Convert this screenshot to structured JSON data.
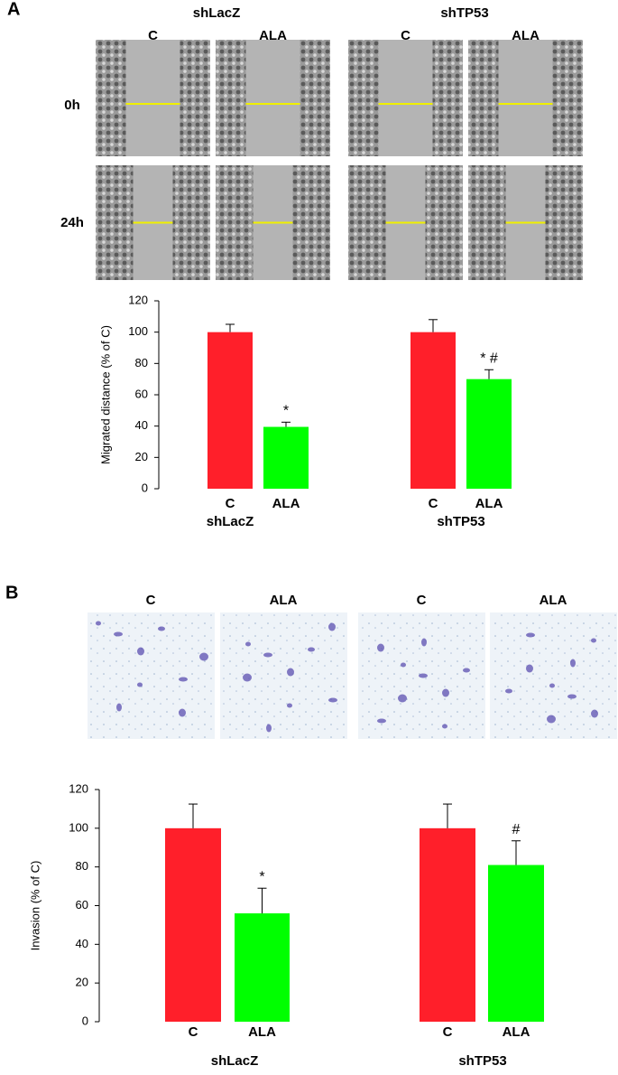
{
  "images": {
    "panel_a": {
      "label": "A",
      "groups": [
        "shLacZ",
        "shTP53"
      ],
      "conditions": [
        "C",
        "ALA",
        "C",
        "ALA"
      ],
      "times": [
        "0h",
        "24h"
      ]
    },
    "panel_b": {
      "label": "B",
      "conditions": [
        "C",
        "ALA",
        "C",
        "ALA"
      ]
    }
  },
  "chart_data": [
    {
      "type": "bar",
      "y_label": "Migrated distance (% of C)",
      "categories": [
        "C",
        "ALA",
        "C",
        "ALA"
      ],
      "group_labels": [
        "shLacZ",
        "shTP53"
      ],
      "values": [
        100,
        39.5,
        100,
        70
      ],
      "errors": [
        5,
        3,
        8,
        6
      ],
      "colors": [
        "#ff1f2a",
        "#00ff00",
        "#ff1f2a",
        "#00ff00"
      ],
      "value_annotations": [
        null,
        "*",
        null,
        "* #"
      ],
      "ylim": [
        0,
        120
      ],
      "yticks": [
        0,
        20,
        40,
        60,
        80,
        100,
        120
      ]
    },
    {
      "type": "bar",
      "y_label": "Invasion (% of C)",
      "categories": [
        "C",
        "ALA",
        "C",
        "ALA"
      ],
      "group_labels": [
        "shLacZ",
        "shTP53"
      ],
      "values": [
        100,
        56,
        100,
        81
      ],
      "errors": [
        12.5,
        13,
        12.5,
        12.5
      ],
      "colors": [
        "#ff1f2a",
        "#00ff00",
        "#ff1f2a",
        "#00ff00"
      ],
      "value_annotations": [
        null,
        "*",
        null,
        "#"
      ],
      "ylim": [
        0,
        120
      ],
      "yticks": [
        0,
        20,
        40,
        60,
        80,
        100,
        120
      ]
    }
  ]
}
